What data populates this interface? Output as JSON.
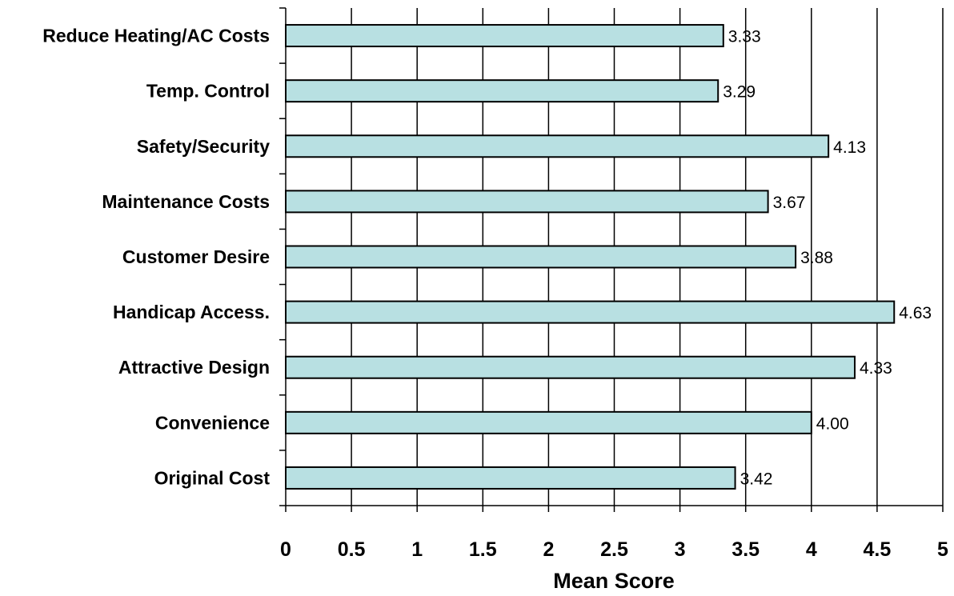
{
  "chart_data": {
    "type": "bar",
    "orientation": "horizontal",
    "categories": [
      "Reduce Heating/AC Costs",
      "Temp. Control",
      "Safety/Security",
      "Maintenance Costs",
      "Customer Desire",
      "Handicap Access.",
      "Attractive Design",
      "Convenience",
      "Original Cost"
    ],
    "values": [
      3.33,
      3.29,
      4.13,
      3.67,
      3.88,
      4.63,
      4.33,
      4.0,
      3.42
    ],
    "value_labels": [
      "3.33",
      "3.29",
      "4.13",
      "3.67",
      "3.88",
      "4.63",
      "4.33",
      "4.00",
      "3.42"
    ],
    "xlabel": "Mean Score",
    "ylabel": "",
    "title": "",
    "xlim": [
      0,
      5
    ],
    "xticks": [
      "0",
      "0.5",
      "1",
      "1.5",
      "2",
      "2.5",
      "3",
      "3.5",
      "4",
      "4.5",
      "5"
    ],
    "grid": "vertical",
    "bar_color": "#b8e0e2",
    "bar_edge_color": "#000000"
  }
}
